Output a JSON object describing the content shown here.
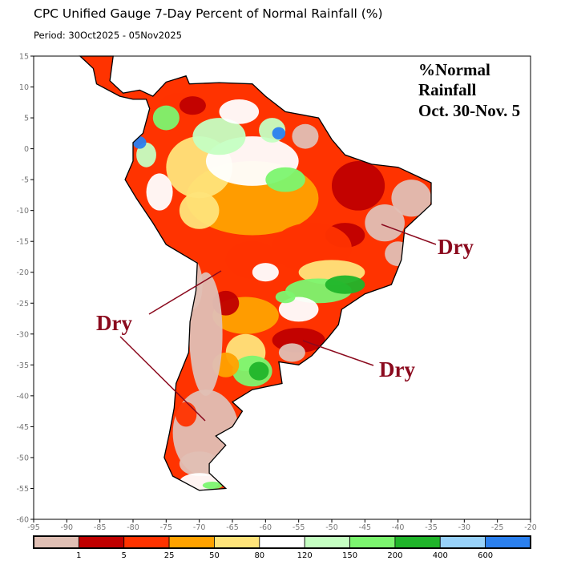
{
  "header": {
    "title": "CPC Unified Gauge 7-Day Percent of Normal Rainfall (%)",
    "period": "Period: 30Oct2025 - 05Nov2025"
  },
  "map": {
    "region": "South America",
    "lon_range": [
      -95,
      -20
    ],
    "lat_range": [
      -60,
      15
    ],
    "x_ticks": [
      "-95",
      "-90",
      "-85",
      "-80",
      "-75",
      "-70",
      "-65",
      "-60",
      "-55",
      "-50",
      "-45",
      "-40",
      "-35",
      "-30",
      "-25",
      "-20"
    ],
    "y_ticks": [
      "15",
      "10",
      "5",
      "0",
      "-5",
      "-10",
      "-15",
      "-20",
      "-25",
      "-30",
      "-35",
      "-40",
      "-45",
      "-50",
      "-55",
      "-60"
    ]
  },
  "annotations": {
    "label_line1": "%Normal",
    "label_line2": "Rainfall",
    "label_line3": "Oct. 30-Nov. 5",
    "dry_east": "Dry",
    "dry_west": "Dry",
    "dry_south": "Dry",
    "text_color": "#8b0a1e"
  },
  "legend": {
    "colors": [
      "#e0bfb4",
      "#c00000",
      "#ff3300",
      "#ffa200",
      "#ffe47a",
      "#ffffff",
      "#c5ffc2",
      "#7cf56f",
      "#20b52a",
      "#98d2fa",
      "#2b80ef"
    ],
    "labels": [
      "1",
      "5",
      "25",
      "50",
      "80",
      "120",
      "150",
      "200",
      "400",
      "600"
    ]
  }
}
